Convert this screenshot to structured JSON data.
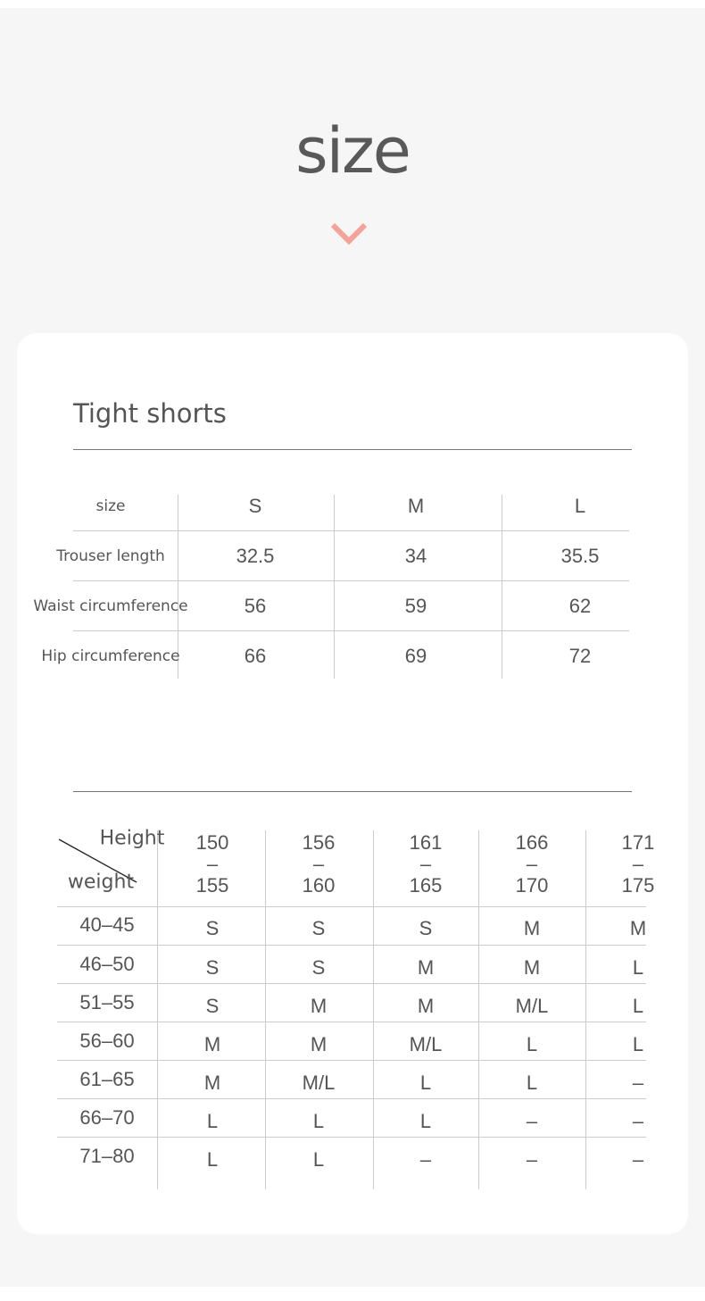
{
  "header": {
    "title": "size",
    "chevron_icon": "chevron-down-icon",
    "accent": "#f4a39a"
  },
  "shorts": {
    "title": "Tight shorts",
    "columns": [
      "size",
      "S",
      "M",
      "L"
    ],
    "rows": [
      [
        "Trouser length",
        "32.5",
        "34",
        "35.5"
      ],
      [
        "Waist circumference",
        "56",
        "59",
        "62"
      ],
      [
        "Hip circumference",
        "66",
        "69",
        "72"
      ]
    ]
  },
  "recommend": {
    "corner_top": "Height",
    "corner_bottom": "weight",
    "heights": [
      [
        "150",
        "–",
        "155"
      ],
      [
        "156",
        "–",
        "160"
      ],
      [
        "161",
        "–",
        "165"
      ],
      [
        "166",
        "–",
        "170"
      ],
      [
        "171",
        "–",
        "175"
      ]
    ],
    "rows": [
      [
        "40–45",
        "S",
        "S",
        "S",
        "M",
        "M"
      ],
      [
        "46–50",
        "S",
        "S",
        "M",
        "M",
        "L"
      ],
      [
        "51–55",
        "S",
        "M",
        "M",
        "M/L",
        "L"
      ],
      [
        "56–60",
        "M",
        "M",
        "M/L",
        "L",
        "L"
      ],
      [
        "61–65",
        "M",
        "M/L",
        "L",
        "L",
        "–"
      ],
      [
        "66–70",
        "L",
        "L",
        "L",
        "–",
        "–"
      ],
      [
        "71–80",
        "L",
        "L",
        "–",
        "–",
        "–"
      ]
    ]
  }
}
